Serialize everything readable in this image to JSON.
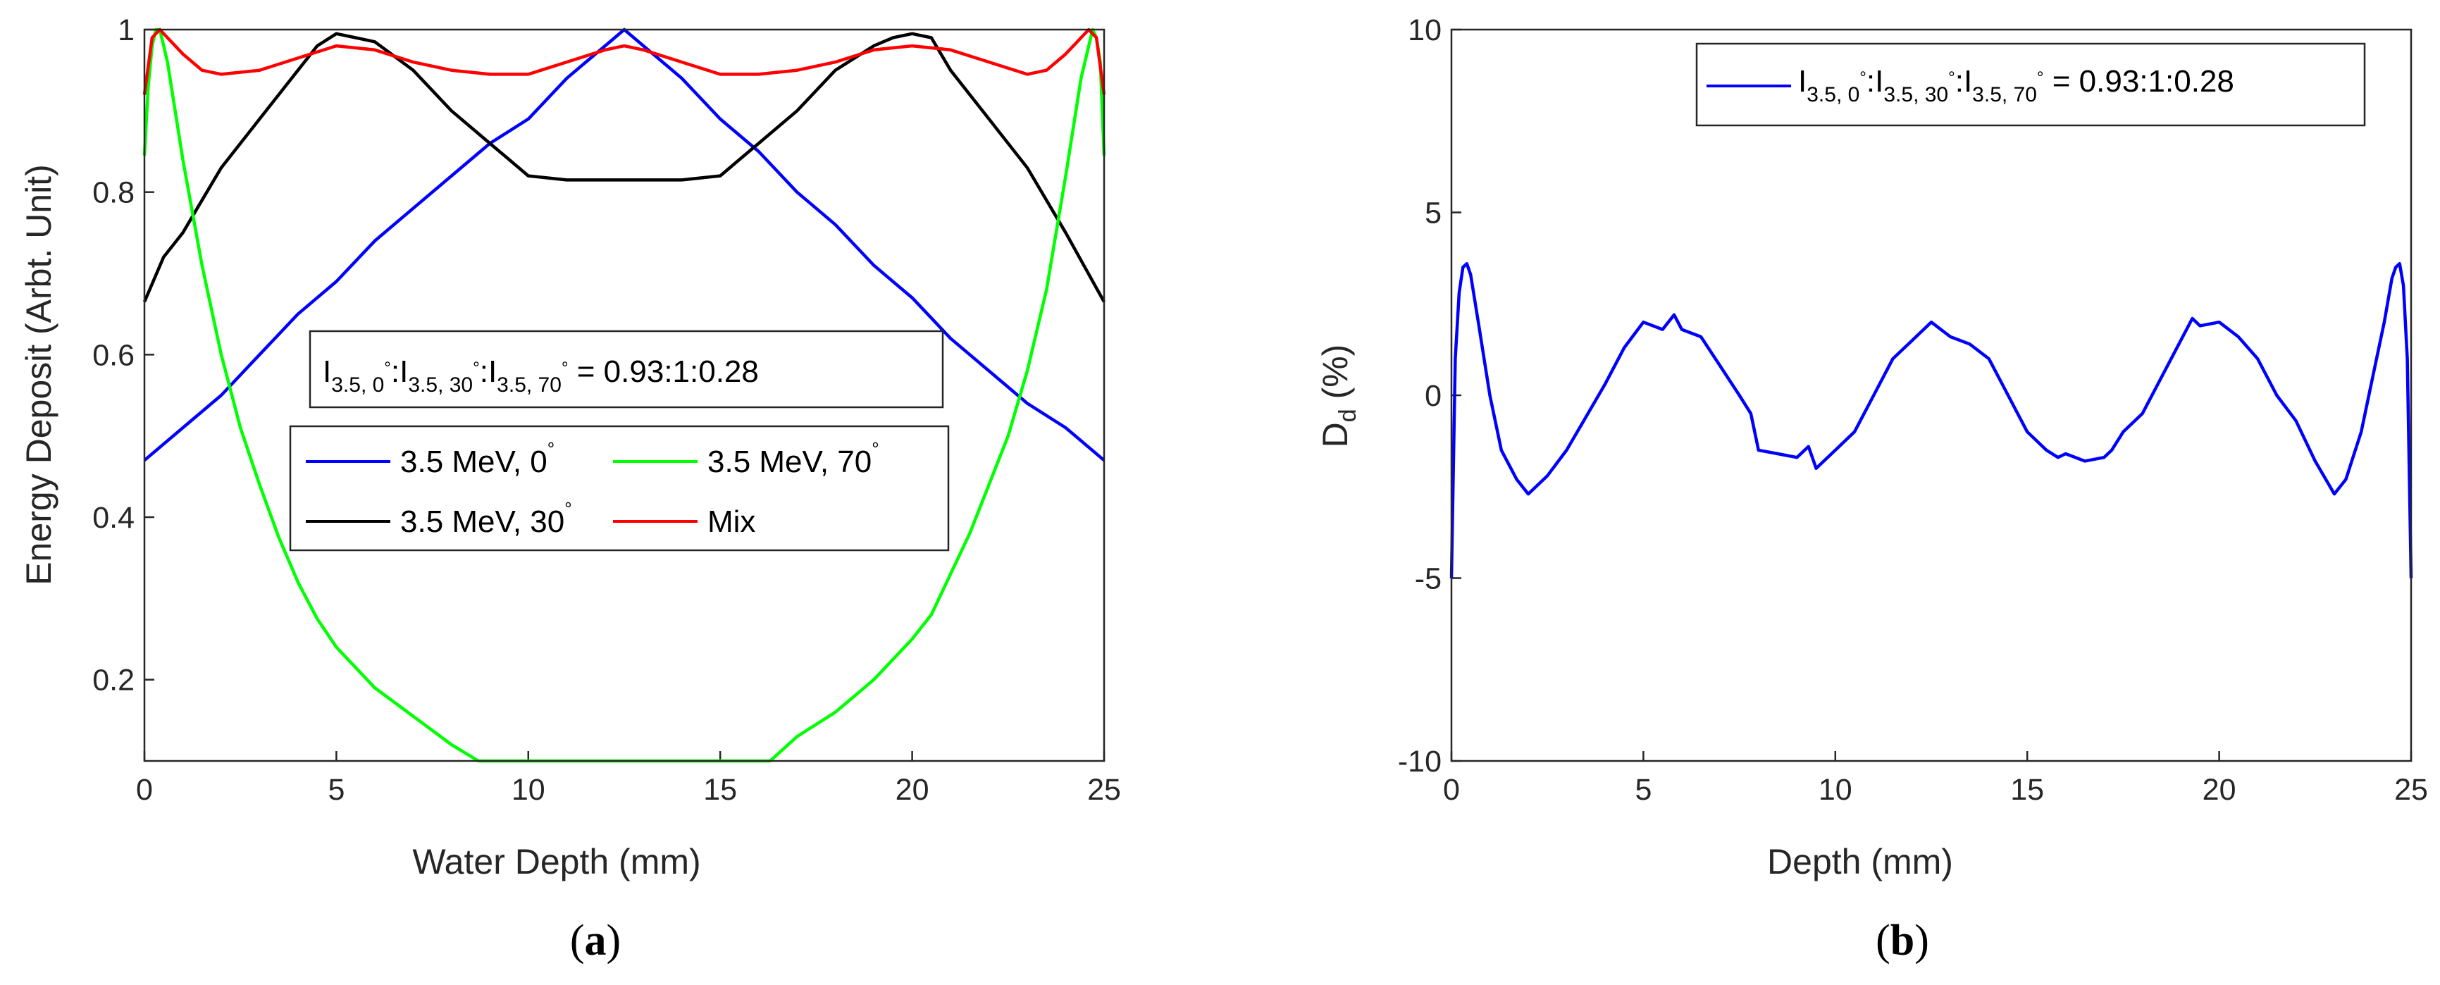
{
  "chart_data": [
    {
      "type": "line",
      "panel_label": "(a)",
      "panel_letter": "a",
      "xlabel": "Water Depth (mm)",
      "ylabel": "Energy Deposit (Arbt. Unit)",
      "xlim": [
        0,
        25
      ],
      "ylim": [
        0.1,
        1.0
      ],
      "x_ticks": [
        0,
        5,
        10,
        15,
        20,
        25
      ],
      "y_ticks": [
        0.2,
        0.4,
        0.6,
        0.8,
        1
      ],
      "grid": false,
      "annotation": {
        "text_parts": [
          "I",
          "3.5, 0",
          "°",
          ":I",
          "3.5, 30",
          "°",
          ":I",
          "3.5, 70",
          "°",
          " = 0.93:1:0.28"
        ]
      },
      "legend_position": "center",
      "series": [
        {
          "name": "3.5 MeV, 0°",
          "legend_parts": [
            "3.5 MeV, 0",
            "°"
          ],
          "color": "#0000ff",
          "x": [
            0,
            1,
            2,
            3,
            4,
            5,
            6,
            7,
            8,
            9,
            10,
            11,
            11.5,
            12,
            12.5,
            13,
            13.5,
            14,
            15,
            16,
            17,
            18,
            19,
            20,
            21,
            22,
            23,
            24,
            25
          ],
          "y": [
            0.47,
            0.51,
            0.55,
            0.6,
            0.65,
            0.69,
            0.74,
            0.78,
            0.82,
            0.86,
            0.89,
            0.94,
            0.96,
            0.98,
            1.0,
            0.98,
            0.96,
            0.94,
            0.89,
            0.85,
            0.8,
            0.76,
            0.71,
            0.67,
            0.62,
            0.58,
            0.54,
            0.51,
            0.47
          ]
        },
        {
          "name": "3.5 MeV, 30°",
          "legend_parts": [
            "3.5 MeV, 30",
            "°"
          ],
          "color": "#000000",
          "x": [
            0,
            0.5,
            1,
            1.5,
            2,
            3,
            4,
            4.5,
            5,
            5.5,
            6,
            7,
            8,
            9,
            9.5,
            10,
            11,
            12,
            13,
            14,
            15,
            15.5,
            16,
            17,
            18,
            19,
            19.5,
            20,
            20.5,
            21,
            22,
            23,
            24,
            25
          ],
          "y": [
            0.665,
            0.72,
            0.75,
            0.79,
            0.83,
            0.89,
            0.95,
            0.98,
            0.995,
            0.99,
            0.985,
            0.95,
            0.9,
            0.86,
            0.84,
            0.82,
            0.815,
            0.815,
            0.815,
            0.815,
            0.82,
            0.84,
            0.86,
            0.9,
            0.95,
            0.98,
            0.99,
            0.995,
            0.99,
            0.95,
            0.89,
            0.83,
            0.75,
            0.665
          ]
        },
        {
          "name": "3.5 MeV, 70°",
          "legend_parts": [
            "3.5 MeV, 70",
            "°"
          ],
          "color": "#00ff00",
          "x": [
            0,
            0.1,
            0.2,
            0.3,
            0.4,
            0.6,
            0.8,
            1,
            1.5,
            2,
            2.5,
            3,
            3.5,
            4,
            4.5,
            5,
            6,
            7,
            8,
            8.7,
            16.3,
            17,
            18,
            19,
            20,
            20.5,
            21,
            21.5,
            22,
            22.5,
            23,
            23.5,
            24,
            24.2,
            24.4,
            24.6,
            24.7,
            24.8,
            24.9,
            25
          ],
          "y": [
            0.845,
            0.93,
            0.98,
            1.0,
            1.0,
            0.96,
            0.9,
            0.84,
            0.71,
            0.6,
            0.51,
            0.44,
            0.375,
            0.32,
            0.275,
            0.24,
            0.19,
            0.155,
            0.12,
            0.1,
            0.1,
            0.13,
            0.16,
            0.2,
            0.25,
            0.28,
            0.33,
            0.38,
            0.44,
            0.5,
            0.58,
            0.68,
            0.82,
            0.88,
            0.94,
            0.98,
            1.0,
            0.99,
            0.96,
            0.845
          ]
        },
        {
          "name": "Mix",
          "legend_parts": [
            "Mix",
            ""
          ],
          "color": "#ff0000",
          "x": [
            0,
            0.2,
            0.4,
            0.6,
            1,
            1.5,
            2,
            3,
            4,
            5,
            6,
            7,
            8,
            9,
            10,
            11,
            12,
            12.5,
            13,
            14,
            15,
            16,
            17,
            18,
            19,
            20,
            21,
            22,
            23,
            23.5,
            24,
            24.4,
            24.6,
            24.8,
            25
          ],
          "y": [
            0.92,
            0.99,
            1.0,
            0.99,
            0.97,
            0.95,
            0.945,
            0.95,
            0.965,
            0.98,
            0.975,
            0.96,
            0.95,
            0.945,
            0.945,
            0.96,
            0.975,
            0.98,
            0.975,
            0.96,
            0.945,
            0.945,
            0.95,
            0.96,
            0.975,
            0.98,
            0.975,
            0.96,
            0.945,
            0.95,
            0.97,
            0.99,
            1.0,
            0.99,
            0.92
          ]
        }
      ]
    },
    {
      "type": "line",
      "panel_label": "(b)",
      "panel_letter": "b",
      "xlabel": "Depth (mm)",
      "ylabel_parts": [
        "D",
        "d",
        " (%)"
      ],
      "xlim": [
        0,
        25
      ],
      "ylim": [
        -10,
        10
      ],
      "x_ticks": [
        0,
        5,
        10,
        15,
        20,
        25
      ],
      "y_ticks": [
        -10,
        -5,
        0,
        5,
        10
      ],
      "grid": false,
      "legend_position": "top-right",
      "series": [
        {
          "name": "I3.5, 0°:I3.5, 30°:I3.5, 70° = 0.93:1:0.28",
          "legend_parts": [
            "I",
            "3.5, 0",
            "°",
            ":I",
            "3.5, 30",
            "°",
            ":I",
            "3.5, 70",
            "°",
            " = 0.93:1:0.28"
          ],
          "color": "#0000ff",
          "x": [
            0,
            0.1,
            0.2,
            0.3,
            0.4,
            0.5,
            0.7,
            1,
            1.3,
            1.7,
            2,
            2.5,
            3,
            3.5,
            4,
            4.5,
            5,
            5.5,
            5.8,
            6,
            6.5,
            7,
            7.5,
            7.8,
            8,
            8.5,
            9,
            9.3,
            9.5,
            10,
            10.5,
            11,
            11.5,
            12,
            12.5,
            13,
            13.5,
            14,
            14.5,
            15,
            15.5,
            15.8,
            16,
            16.5,
            17,
            17.2,
            17.5,
            18,
            18.5,
            19,
            19.3,
            19.5,
            20,
            20.5,
            21,
            21.5,
            22,
            22.5,
            23,
            23.3,
            23.7,
            24,
            24.3,
            24.5,
            24.6,
            24.7,
            24.8,
            24.9,
            25
          ],
          "y": [
            -5.0,
            1.0,
            2.8,
            3.5,
            3.6,
            3.3,
            2.0,
            0.0,
            -1.5,
            -2.3,
            -2.7,
            -2.2,
            -1.5,
            -0.6,
            0.3,
            1.3,
            2.0,
            1.8,
            2.2,
            1.8,
            1.6,
            0.8,
            0.0,
            -0.5,
            -1.5,
            -1.6,
            -1.7,
            -1.4,
            -2.0,
            -1.5,
            -1.0,
            0.0,
            1.0,
            1.5,
            2.0,
            1.6,
            1.4,
            1.0,
            0.0,
            -1.0,
            -1.5,
            -1.7,
            -1.6,
            -1.8,
            -1.7,
            -1.5,
            -1.0,
            -0.5,
            0.5,
            1.5,
            2.1,
            1.9,
            2.0,
            1.6,
            1.0,
            0.0,
            -0.7,
            -1.8,
            -2.7,
            -2.3,
            -1.0,
            0.5,
            2.0,
            3.2,
            3.5,
            3.6,
            3.0,
            1.0,
            -5.0
          ]
        }
      ]
    }
  ]
}
